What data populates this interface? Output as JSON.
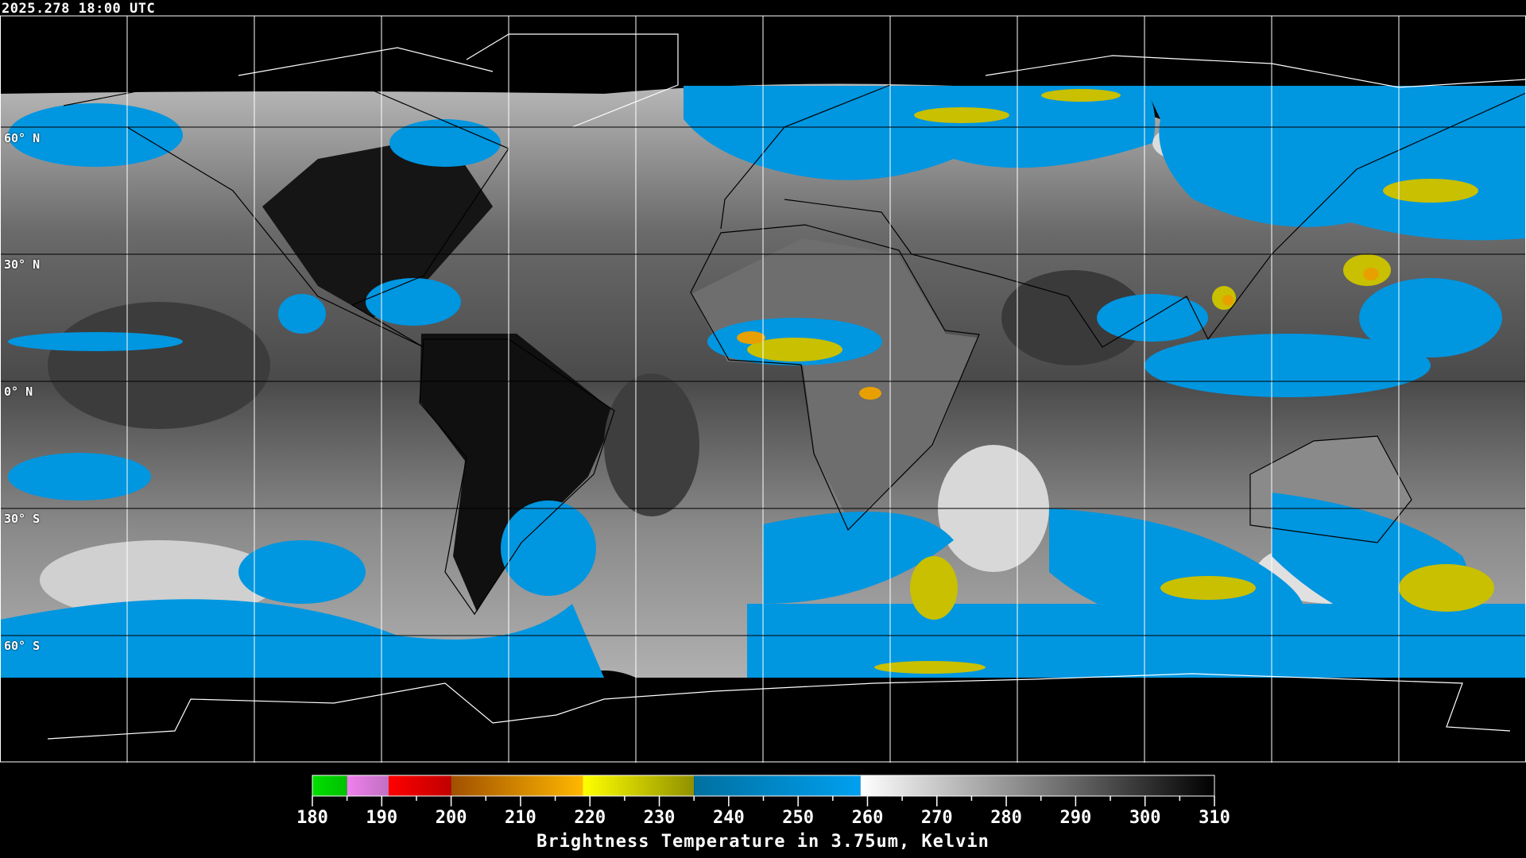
{
  "timestamp": "2025.278 18:00 UTC",
  "map": {
    "projection": "equirectangular",
    "lon_range": [
      -180,
      180
    ],
    "lat_range": [
      -90,
      90
    ],
    "grid_spacing_deg": 30,
    "lat_labels": [
      "60° N",
      "30° N",
      "0° N",
      "30° S",
      "60° S"
    ],
    "colors": {
      "cold_cloud_blue": "#0096e0",
      "very_cold_yellow": "#c8c000",
      "coldest_orange": "#e8a000",
      "coastline_outside": "#ffffff",
      "coastline_inside": "#000000"
    }
  },
  "colorbar": {
    "title": "Brightness Temperature in 3.75um, Kelvin",
    "min": 180,
    "max": 310,
    "tick_step": 5,
    "tick_labels": [
      "180",
      "190",
      "200",
      "210",
      "220",
      "230",
      "240",
      "250",
      "260",
      "270",
      "280",
      "290",
      "300",
      "310"
    ],
    "segments": [
      {
        "from": 180,
        "to": 185,
        "c1": "#00e000",
        "c2": "#00c000"
      },
      {
        "from": 185,
        "to": 191,
        "c1": "#f080f0",
        "c2": "#c070c0"
      },
      {
        "from": 191,
        "to": 200,
        "c1": "#ff0000",
        "c2": "#c00000"
      },
      {
        "from": 200,
        "to": 219,
        "c1": "#a05000",
        "c2": "#ffb800"
      },
      {
        "from": 219,
        "to": 235,
        "c1": "#ffff00",
        "c2": "#909000"
      },
      {
        "from": 235,
        "to": 259,
        "c1": "#0070a0",
        "c2": "#00a0f0"
      },
      {
        "from": 259,
        "to": 310,
        "c1": "#ffffff",
        "c2": "#000000"
      }
    ]
  }
}
